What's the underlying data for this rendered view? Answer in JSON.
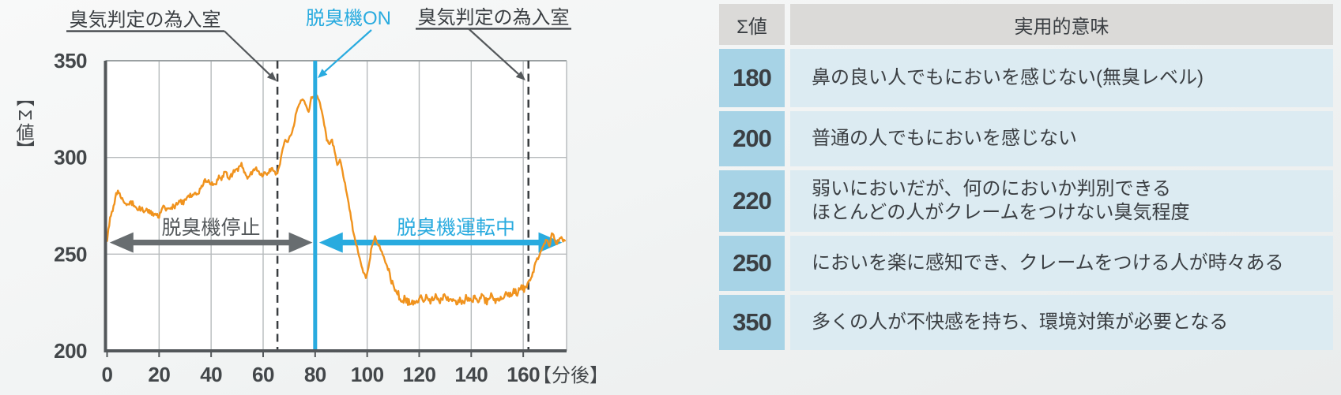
{
  "page": {
    "background_top": "#f8f9f9",
    "background_bottom": "#e9ecec"
  },
  "chart": {
    "y_axis_label": "【Σ値】",
    "x_axis_unit": "【分後】",
    "annotations": {
      "enter_room_left": "臭気判定の為入室",
      "deodorizer_on": "脱臭機ON",
      "enter_room_right": "臭気判定の為入室",
      "deodorizer_stopped": "脱臭機停止",
      "deodorizer_running": "脱臭機運転中"
    },
    "colors": {
      "line": "#f0931e",
      "accent_cyan": "#29abdf",
      "arrow_gray": "#686d70",
      "text": "#3b3f43",
      "grid": "#b6babc",
      "axis": "#53575a",
      "dashed": "#393d40",
      "plot_bg": "#ffffff"
    }
  },
  "chart_data": {
    "type": "line",
    "xlabel": "【分後】",
    "ylabel": "【Σ値】",
    "x_ticks": [
      0,
      20,
      40,
      60,
      80,
      100,
      120,
      140,
      160
    ],
    "y_ticks": [
      200,
      250,
      300,
      350
    ],
    "xlim": [
      0,
      176.7
    ],
    "ylim": [
      200,
      350
    ],
    "grid": true,
    "events": {
      "enter_room_1_min": 65.5,
      "deodorizer_on_min": 80,
      "enter_room_2_min": 162
    },
    "spans": [
      {
        "label": "脱臭機停止",
        "from_min": 1,
        "to_min": 79,
        "at_value": 256
      },
      {
        "label": "脱臭機運転中",
        "from_min": 81.5,
        "to_min": 175,
        "at_value": 256
      }
    ],
    "series": [
      {
        "name": "Σ値",
        "color": "#f0931e",
        "points": [
          [
            0,
            256
          ],
          [
            0.5,
            263
          ],
          [
            1.5,
            270
          ],
          [
            2.5,
            275
          ],
          [
            3.5,
            280
          ],
          [
            4.5,
            282
          ],
          [
            5.5,
            279
          ],
          [
            6.5,
            277
          ],
          [
            7.5,
            276
          ],
          [
            8.5,
            277
          ],
          [
            9.5,
            276
          ],
          [
            10.5,
            275
          ],
          [
            11.5,
            274
          ],
          [
            12.5,
            273
          ],
          [
            13.5,
            273
          ],
          [
            14.5,
            272
          ],
          [
            15.5,
            272
          ],
          [
            16.5,
            272
          ],
          [
            17.5,
            271
          ],
          [
            18.5,
            271
          ],
          [
            20,
            270
          ],
          [
            21,
            272
          ],
          [
            22,
            274
          ],
          [
            23,
            273
          ],
          [
            24,
            273
          ],
          [
            25,
            274
          ],
          [
            26,
            275
          ],
          [
            27,
            276
          ],
          [
            28,
            277
          ],
          [
            29,
            277
          ],
          [
            30,
            278
          ],
          [
            31,
            279
          ],
          [
            32,
            281
          ],
          [
            33,
            280
          ],
          [
            34,
            280
          ],
          [
            35,
            281
          ],
          [
            36,
            284
          ],
          [
            37,
            286
          ],
          [
            38,
            289
          ],
          [
            39,
            288
          ],
          [
            40,
            286
          ],
          [
            41,
            286
          ],
          [
            42,
            287
          ],
          [
            43,
            289
          ],
          [
            44,
            290
          ],
          [
            45,
            292
          ],
          [
            46,
            291
          ],
          [
            47,
            290
          ],
          [
            48,
            291
          ],
          [
            49,
            293
          ],
          [
            50,
            294
          ],
          [
            51,
            296
          ],
          [
            52,
            295
          ],
          [
            53,
            292
          ],
          [
            54,
            290
          ],
          [
            55,
            291
          ],
          [
            56,
            293
          ],
          [
            57,
            294
          ],
          [
            58,
            293
          ],
          [
            59,
            292
          ],
          [
            60,
            291
          ],
          [
            61.5,
            292
          ],
          [
            62.5,
            294
          ],
          [
            63.5,
            294
          ],
          [
            64.5,
            293
          ],
          [
            65.5,
            292
          ],
          [
            66.5,
            296
          ],
          [
            67.5,
            305
          ],
          [
            68.5,
            309
          ],
          [
            69.5,
            308
          ],
          [
            70.5,
            311
          ],
          [
            71.5,
            315
          ],
          [
            72.5,
            321
          ],
          [
            73.5,
            326
          ],
          [
            74.5,
            329
          ],
          [
            75.5,
            330
          ],
          [
            76.5,
            327
          ],
          [
            77.5,
            324
          ],
          [
            78.5,
            330
          ],
          [
            79.5,
            332
          ],
          [
            80.5,
            333
          ],
          [
            81.5,
            329
          ],
          [
            82.5,
            324
          ],
          [
            83.5,
            317
          ],
          [
            84.5,
            309
          ],
          [
            85.5,
            307
          ],
          [
            86.5,
            309
          ],
          [
            87.5,
            303
          ],
          [
            88.5,
            297
          ],
          [
            89.5,
            299
          ],
          [
            90.5,
            292
          ],
          [
            91.5,
            287
          ],
          [
            92.5,
            279
          ],
          [
            93.5,
            271
          ],
          [
            94.5,
            263
          ],
          [
            95.5,
            257
          ],
          [
            96.5,
            251
          ],
          [
            97.5,
            246
          ],
          [
            98.5,
            241
          ],
          [
            99.5,
            238
          ],
          [
            100.5,
            243
          ],
          [
            101.5,
            252
          ],
          [
            103,
            259
          ],
          [
            104,
            256
          ],
          [
            105,
            253
          ],
          [
            106,
            250
          ],
          [
            107,
            246
          ],
          [
            108,
            242
          ],
          [
            109,
            238
          ],
          [
            110,
            234
          ],
          [
            111,
            231
          ],
          [
            112,
            229
          ],
          [
            113,
            227
          ],
          [
            114,
            226
          ],
          [
            116,
            226
          ],
          [
            118,
            224
          ],
          [
            120,
            226
          ],
          [
            122,
            228
          ],
          [
            124,
            226
          ],
          [
            126,
            228
          ],
          [
            128,
            227
          ],
          [
            130,
            228
          ],
          [
            132,
            227
          ],
          [
            134,
            225
          ],
          [
            136,
            226
          ],
          [
            138,
            227
          ],
          [
            140,
            226
          ],
          [
            142,
            227
          ],
          [
            144,
            228
          ],
          [
            146,
            226
          ],
          [
            148,
            228
          ],
          [
            150,
            226
          ],
          [
            152,
            228
          ],
          [
            154,
            229
          ],
          [
            156,
            230
          ],
          [
            158,
            231
          ],
          [
            160,
            232
          ],
          [
            161,
            233
          ],
          [
            162,
            235
          ],
          [
            163,
            238
          ],
          [
            164,
            242
          ],
          [
            165,
            246
          ],
          [
            166,
            249
          ],
          [
            167,
            252
          ],
          [
            168,
            255
          ],
          [
            169,
            258
          ],
          [
            170,
            254
          ],
          [
            171,
            261
          ],
          [
            172,
            258
          ],
          [
            173,
            256
          ],
          [
            174,
            258
          ],
          [
            175,
            258
          ],
          [
            176,
            257
          ]
        ]
      }
    ]
  },
  "table": {
    "headers": [
      "Σ値",
      "実用的意味"
    ],
    "rows": [
      {
        "value": "180",
        "meaning": [
          "鼻の良い人でもにおいを感じない(無臭レベル)"
        ]
      },
      {
        "value": "200",
        "meaning": [
          "普通の人でもにおいを感じない"
        ]
      },
      {
        "value": "220",
        "meaning": [
          "弱いにおいだが、何のにおいか判別できる",
          "ほとんどの人がクレームをつけない臭気程度"
        ]
      },
      {
        "value": "250",
        "meaning": [
          "においを楽に感知でき、クレームをつける人が時々ある"
        ]
      },
      {
        "value": "350",
        "meaning": [
          "多くの人が不快感を持ち、環境対策が必要となる"
        ]
      }
    ],
    "colors": {
      "header_bg": "#dbdad8",
      "value_bg": "#a7d3e6",
      "meaning_bg": "#dcebf2",
      "text": "#3b3f43"
    }
  }
}
